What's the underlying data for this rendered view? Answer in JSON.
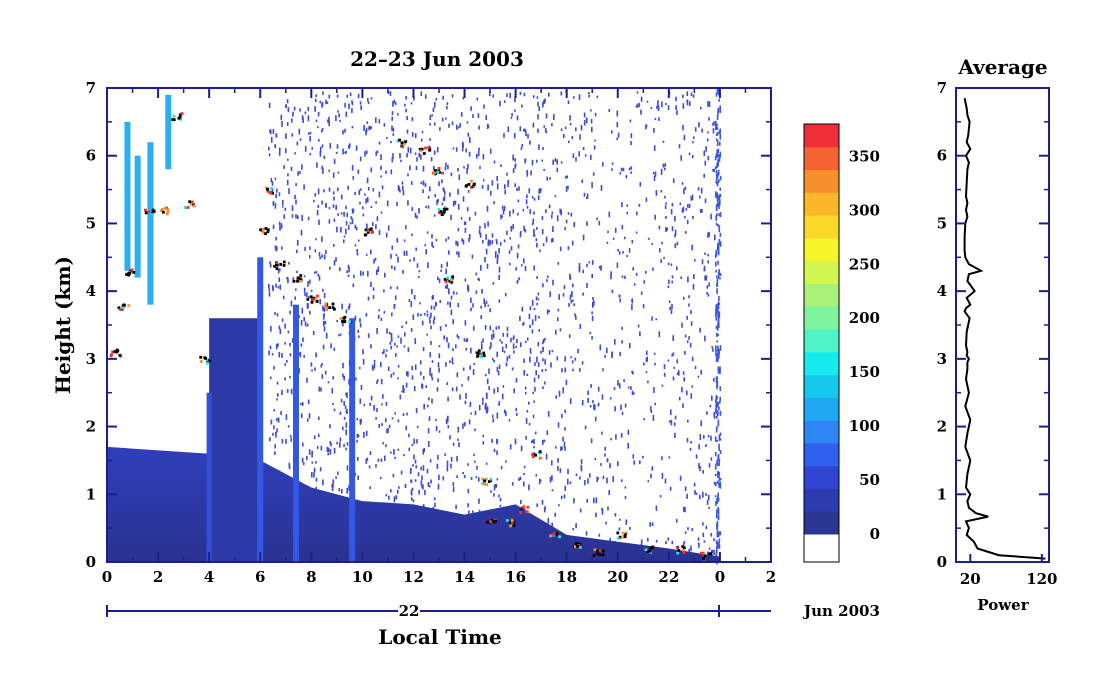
{
  "chart_data": [
    {
      "type": "heatmap",
      "title": "22–23 Jun 2003",
      "xlabel": "Local Time",
      "ylabel": "Height (km)",
      "xlim": [
        0,
        26
      ],
      "ylim": [
        0,
        7
      ],
      "x_ticks": [
        "0",
        "2",
        "4",
        "6",
        "8",
        "10",
        "12",
        "14",
        "16",
        "18",
        "20",
        "22",
        "0",
        "2"
      ],
      "y_ticks": [
        "0",
        "1",
        "2",
        "3",
        "4",
        "5",
        "6",
        "7"
      ],
      "date_axis": {
        "day_label": "22",
        "month_label": "Jun 2003"
      },
      "data_extent_hours": [
        0,
        24
      ],
      "colorbar": {
        "ticks": [
          "0",
          "50",
          "100",
          "150",
          "200",
          "250",
          "300",
          "350"
        ],
        "range": [
          0,
          380
        ],
        "colors": [
          "#ffffff",
          "#2b3592",
          "#2d3bb0",
          "#2f45d2",
          "#3060ee",
          "#2f85f4",
          "#1fa9f2",
          "#17c8ee",
          "#16ecee",
          "#4ef3c6",
          "#7df49e",
          "#a8f27a",
          "#d3f550",
          "#f5f52a",
          "#f9d82a",
          "#fbb62a",
          "#f7902c",
          "#f46433",
          "#ee2f3a"
        ]
      },
      "features": [
        {
          "name": "boundary-layer",
          "height_km_vs_hour": [
            [
              0,
              1.7
            ],
            [
              4,
              1.6
            ],
            [
              6,
              1.5
            ],
            [
              8,
              1.1
            ],
            [
              10,
              0.9
            ],
            [
              12,
              0.85
            ],
            [
              14,
              0.7
            ],
            [
              16,
              0.85
            ],
            [
              18,
              0.4
            ],
            [
              20,
              0.3
            ],
            [
              22,
              0.2
            ],
            [
              24,
              0.08
            ]
          ]
        },
        {
          "name": "morning-tower",
          "x_range": [
            4,
            6
          ],
          "top_km": 3.6
        },
        {
          "name": "cloud-layer-1",
          "points_hour_km": [
            [
              0.3,
              3.1
            ],
            [
              0.6,
              3.8
            ],
            [
              0.9,
              4.3
            ],
            [
              1.6,
              5.2
            ],
            [
              2.2,
              5.2
            ],
            [
              2.7,
              6.6
            ],
            [
              3.2,
              5.3
            ],
            [
              3.8,
              3.0
            ],
            [
              6.1,
              4.9
            ],
            [
              6.3,
              5.5
            ],
            [
              6.7,
              4.4
            ],
            [
              7.4,
              4.2
            ],
            [
              8.0,
              3.9
            ],
            [
              8.7,
              3.8
            ],
            [
              9.3,
              3.6
            ]
          ]
        },
        {
          "name": "cloud-layer-2",
          "points_hour_km": [
            [
              10.2,
              4.9
            ],
            [
              11.5,
              6.2
            ],
            [
              12.4,
              6.1
            ],
            [
              12.9,
              5.8
            ],
            [
              13.1,
              5.2
            ],
            [
              13.3,
              4.2
            ],
            [
              14.2,
              5.6
            ]
          ]
        },
        {
          "name": "descending-trail",
          "points_hour_km": [
            [
              14.6,
              3.1
            ],
            [
              14.8,
              1.2
            ],
            [
              15.0,
              0.6
            ],
            [
              15.8,
              0.6
            ],
            [
              16.3,
              0.8
            ],
            [
              16.8,
              1.6
            ],
            [
              17.5,
              0.4
            ],
            [
              18.4,
              0.25
            ],
            [
              19.2,
              0.15
            ],
            [
              20.1,
              0.4
            ],
            [
              21.2,
              0.2
            ],
            [
              22.4,
              0.2
            ],
            [
              23.4,
              0.1
            ]
          ]
        }
      ]
    },
    {
      "type": "line",
      "title": "Average",
      "xlabel": "Power",
      "ylabel": "",
      "xlim": [
        0,
        130
      ],
      "ylim": [
        0,
        7
      ],
      "x_ticks": [
        "20",
        "120"
      ],
      "y_ticks": [
        "0",
        "1",
        "2",
        "3",
        "4",
        "5",
        "6",
        "7"
      ],
      "series": [
        {
          "x": [
            125,
            60,
            30,
            25,
            15,
            18,
            14,
            45,
            28,
            18,
            16,
            20,
            14,
            16,
            20,
            13,
            16,
            20,
            13,
            18,
            14,
            16,
            16,
            18,
            15,
            16,
            14,
            15,
            19,
            12,
            14,
            20,
            15,
            26,
            16,
            18,
            35,
            18,
            13,
            12,
            12,
            13,
            16,
            14,
            16,
            14,
            15,
            16,
            18,
            14,
            20,
            15,
            17,
            18,
            19,
            16,
            15,
            12
          ],
          "y": [
            0.05,
            0.1,
            0.2,
            0.3,
            0.4,
            0.5,
            0.6,
            0.67,
            0.72,
            0.8,
            0.9,
            1.0,
            1.1,
            1.3,
            1.5,
            1.7,
            1.9,
            2.1,
            2.3,
            2.5,
            2.7,
            2.85,
            2.95,
            3.0,
            3.05,
            3.1,
            3.2,
            3.4,
            3.6,
            3.7,
            3.75,
            3.8,
            3.9,
            4.0,
            4.15,
            4.25,
            4.3,
            4.4,
            4.5,
            4.6,
            4.8,
            5.0,
            5.1,
            5.2,
            5.3,
            5.4,
            5.6,
            5.8,
            5.9,
            6.0,
            6.1,
            6.2,
            6.3,
            6.4,
            6.5,
            6.6,
            6.7,
            6.85
          ]
        }
      ]
    }
  ]
}
